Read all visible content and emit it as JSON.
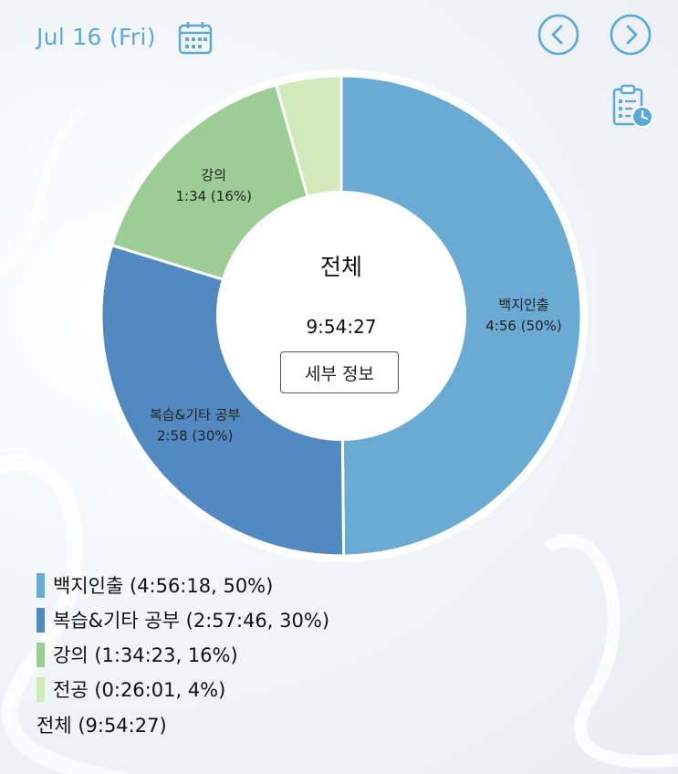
{
  "header": {
    "date": "Jul 16 (Fri)",
    "calendar_icon": "calendar-icon",
    "prev_icon": "chevron-left-icon",
    "next_icon": "chevron-right-icon",
    "report_icon": "clipboard-clock-icon"
  },
  "center": {
    "title": "전체",
    "total": "9:54:27",
    "detail_button": "세부 정보"
  },
  "chart_data": {
    "type": "pie",
    "series": [
      {
        "name": "백지인출",
        "label_value": "4:56 (50%)",
        "legend": "백지인출 (4:56:18, 50%)",
        "seconds": 17778,
        "color": "#6aaad3"
      },
      {
        "name": "복습&기타 공부",
        "label_value": "2:58 (30%)",
        "legend": "복습&기타 공부 (2:57:46, 30%)",
        "seconds": 10666,
        "color": "#5189c0"
      },
      {
        "name": "강의",
        "label_value": "1:34 (16%)",
        "legend": "강의 (1:34:23, 16%)",
        "seconds": 5663,
        "color": "#9ccd94"
      },
      {
        "name": "전공",
        "label_value": "",
        "legend": "전공 (0:26:01, 4%)",
        "seconds": 1561,
        "color": "#d2e9bc"
      }
    ],
    "total_legend": "전체 (9:54:27)"
  }
}
